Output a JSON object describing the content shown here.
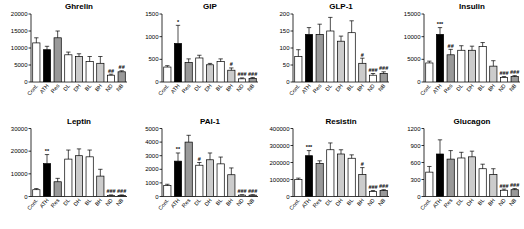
{
  "chart_data": [
    {
      "type": "bar",
      "title": "Ghrelin",
      "categories": [
        "Cont.",
        "ATH",
        "Res",
        "DL",
        "DH",
        "BL",
        "BH",
        "ND",
        "NB"
      ],
      "values": [
        11500,
        9500,
        13000,
        8000,
        7500,
        6000,
        5500,
        2000,
        3000
      ],
      "errors": [
        1500,
        1000,
        2000,
        800,
        800,
        1500,
        2000,
        300,
        300
      ],
      "annotations": [
        null,
        null,
        null,
        null,
        null,
        null,
        null,
        "##",
        "##"
      ],
      "colors": [
        "#ffffff",
        "#000000",
        "#999999",
        "#ffffff",
        "#cccccc",
        "#ffffff",
        "#cccccc",
        "#ffffff",
        "#999999"
      ],
      "ylim": [
        0,
        20000
      ],
      "yticks": [
        0,
        5000,
        10000,
        15000,
        20000
      ]
    },
    {
      "type": "bar",
      "title": "GIP",
      "categories": [
        "Cont.",
        "ATH",
        "Res",
        "DL",
        "DH",
        "BL",
        "BH",
        "ND",
        "NB"
      ],
      "values": [
        330,
        850,
        430,
        530,
        380,
        450,
        260,
        70,
        80
      ],
      "errors": [
        30,
        400,
        80,
        60,
        30,
        60,
        50,
        20,
        20
      ],
      "annotations": [
        null,
        "*",
        null,
        null,
        null,
        null,
        "#",
        "###",
        "###"
      ],
      "colors": [
        "#ffffff",
        "#000000",
        "#999999",
        "#ffffff",
        "#cccccc",
        "#ffffff",
        "#cccccc",
        "#ffffff",
        "#999999"
      ],
      "ylim": [
        0,
        1500
      ],
      "yticks": [
        0,
        500,
        1000,
        1500
      ]
    },
    {
      "type": "bar",
      "title": "GLP-1",
      "categories": [
        "Cont.",
        "ATH",
        "Res",
        "DL",
        "DH",
        "BL",
        "BH",
        "ND",
        "NB"
      ],
      "values": [
        75,
        140,
        140,
        150,
        120,
        145,
        55,
        20,
        25
      ],
      "errors": [
        20,
        20,
        30,
        40,
        15,
        35,
        15,
        5,
        5
      ],
      "annotations": [
        null,
        null,
        null,
        null,
        null,
        null,
        "#",
        "###",
        "###"
      ],
      "colors": [
        "#ffffff",
        "#000000",
        "#999999",
        "#ffffff",
        "#cccccc",
        "#ffffff",
        "#cccccc",
        "#ffffff",
        "#999999"
      ],
      "ylim": [
        0,
        200
      ],
      "yticks": [
        0,
        50,
        100,
        150,
        200
      ]
    },
    {
      "type": "bar",
      "title": "Insulin",
      "categories": [
        "Cont.",
        "ATH",
        "Res",
        "DL",
        "DH",
        "BL",
        "BH",
        "ND",
        "NB"
      ],
      "values": [
        4200,
        10500,
        6000,
        7000,
        7000,
        7800,
        3500,
        1000,
        1200
      ],
      "errors": [
        400,
        1500,
        1200,
        1000,
        900,
        900,
        1200,
        200,
        200
      ],
      "annotations": [
        null,
        "***",
        "##",
        null,
        null,
        null,
        null,
        "###",
        "###"
      ],
      "colors": [
        "#ffffff",
        "#000000",
        "#999999",
        "#ffffff",
        "#cccccc",
        "#ffffff",
        "#cccccc",
        "#ffffff",
        "#999999"
      ],
      "ylim": [
        0,
        15000
      ],
      "yticks": [
        0,
        5000,
        10000,
        15000
      ]
    },
    {
      "type": "bar",
      "title": "Leptin",
      "categories": [
        "Cont.",
        "ATH",
        "Res",
        "DL",
        "DH",
        "BL",
        "BH",
        "ND",
        "NB"
      ],
      "values": [
        3000,
        14500,
        6500,
        16500,
        18000,
        17500,
        9000,
        500,
        500
      ],
      "errors": [
        500,
        4000,
        1500,
        4000,
        3000,
        3000,
        3000,
        200,
        200
      ],
      "annotations": [
        null,
        "**",
        null,
        null,
        null,
        null,
        null,
        "###",
        "###"
      ],
      "colors": [
        "#ffffff",
        "#000000",
        "#999999",
        "#ffffff",
        "#cccccc",
        "#ffffff",
        "#cccccc",
        "#ffffff",
        "#999999"
      ],
      "ylim": [
        0,
        30000
      ],
      "yticks": [
        0,
        10000,
        20000,
        30000
      ]
    },
    {
      "type": "bar",
      "title": "PAI-1",
      "categories": [
        "Cont.",
        "ATH",
        "Res",
        "DL",
        "DH",
        "BL",
        "BH",
        "ND",
        "NB"
      ],
      "values": [
        800,
        2600,
        4000,
        2300,
        2700,
        2400,
        1600,
        100,
        100
      ],
      "errors": [
        100,
        600,
        500,
        200,
        500,
        500,
        500,
        30,
        30
      ],
      "annotations": [
        null,
        "**",
        null,
        "#",
        null,
        null,
        null,
        "###",
        "###"
      ],
      "colors": [
        "#ffffff",
        "#000000",
        "#999999",
        "#ffffff",
        "#cccccc",
        "#ffffff",
        "#cccccc",
        "#ffffff",
        "#999999"
      ],
      "ylim": [
        0,
        5000
      ],
      "yticks": [
        0,
        1000,
        2000,
        3000,
        4000,
        5000
      ]
    },
    {
      "type": "bar",
      "title": "Resistin",
      "categories": [
        "Cont.",
        "ATH",
        "Res",
        "DL",
        "DH",
        "BL",
        "BH",
        "ND",
        "NB"
      ],
      "values": [
        100000,
        240000,
        195000,
        275000,
        250000,
        225000,
        130000,
        30000,
        35000
      ],
      "errors": [
        8000,
        30000,
        15000,
        40000,
        25000,
        20000,
        40000,
        5000,
        5000
      ],
      "annotations": [
        null,
        "***",
        null,
        null,
        null,
        null,
        "#",
        "###",
        "###"
      ],
      "colors": [
        "#ffffff",
        "#000000",
        "#999999",
        "#ffffff",
        "#cccccc",
        "#ffffff",
        "#cccccc",
        "#ffffff",
        "#999999"
      ],
      "ylim": [
        0,
        400000
      ],
      "yticks": [
        0,
        100000,
        200000,
        300000,
        400000
      ]
    },
    {
      "type": "bar",
      "title": "Glucagon",
      "categories": [
        "Cont.",
        "ATH",
        "Res",
        "DL",
        "DH",
        "BL",
        "BH",
        "ND",
        "NB"
      ],
      "values": [
        430,
        750,
        660,
        680,
        700,
        490,
        390,
        110,
        120
      ],
      "errors": [
        100,
        250,
        150,
        100,
        100,
        80,
        100,
        20,
        20
      ],
      "annotations": [
        null,
        null,
        null,
        null,
        null,
        null,
        null,
        "###",
        "###"
      ],
      "colors": [
        "#ffffff",
        "#000000",
        "#999999",
        "#ffffff",
        "#cccccc",
        "#ffffff",
        "#cccccc",
        "#ffffff",
        "#999999"
      ],
      "ylim": [
        0,
        1200
      ],
      "yticks": [
        0,
        300,
        600,
        900,
        1200
      ]
    }
  ]
}
